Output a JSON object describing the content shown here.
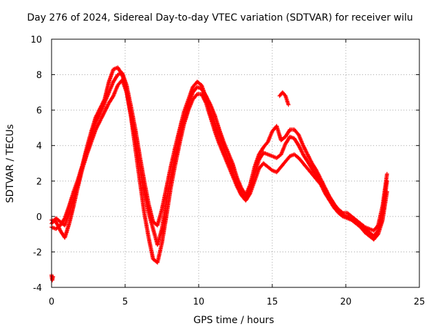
{
  "chart_data": {
    "type": "scatter",
    "title": "Day 276 of 2024, Sidereal Day-to-day VTEC variation (SDTVAR) for receiver wilu",
    "xlabel": "GPS time / hours",
    "ylabel": "SDTVAR / TECUs",
    "xlim": [
      0,
      25
    ],
    "ylim": [
      -4,
      10
    ],
    "xticks": [
      "0",
      "5",
      "10",
      "15",
      "20",
      "25"
    ],
    "yticks": [
      "-4",
      "-2",
      "0",
      "2",
      "4",
      "6",
      "8",
      "10"
    ],
    "marker": "+",
    "series_color": "#ff0000",
    "grid": "dotted",
    "series": [
      {
        "name": "track-1",
        "x": [
          0.0,
          0.3,
          0.6,
          0.9,
          1.2,
          1.5,
          1.8,
          2.1,
          2.4,
          2.7,
          3.0,
          3.3,
          3.6,
          3.9,
          4.2,
          4.5,
          4.8,
          5.1,
          5.4,
          5.7,
          6.0,
          6.3,
          6.6,
          6.9,
          7.2,
          7.5,
          7.8,
          8.1,
          8.4,
          8.7,
          9.0,
          9.3,
          9.6,
          9.9,
          10.2,
          10.5,
          10.8,
          11.1,
          11.4,
          11.7,
          12.0,
          12.3,
          12.6,
          12.9,
          13.2,
          13.5,
          13.8,
          14.1,
          14.4,
          14.7,
          15.0,
          15.3,
          15.6,
          15.9,
          16.2,
          16.5,
          16.8,
          17.1,
          17.4,
          17.7,
          18.0,
          18.3,
          18.6,
          18.9,
          19.2,
          19.5,
          19.8,
          20.1,
          20.4,
          20.7,
          21.0,
          21.3,
          21.6,
          21.9,
          22.2,
          22.5,
          22.8
        ],
        "y": [
          -0.6,
          -0.7,
          -0.5,
          -0.1,
          0.6,
          1.4,
          2.1,
          2.9,
          3.7,
          4.5,
          5.3,
          5.8,
          6.4,
          7.0,
          7.6,
          8.0,
          8.1,
          7.4,
          6.2,
          4.9,
          3.4,
          2.0,
          0.7,
          -0.3,
          -0.5,
          0.4,
          1.6,
          2.8,
          3.9,
          4.9,
          5.9,
          6.6,
          7.3,
          7.6,
          7.4,
          6.7,
          5.9,
          5.2,
          4.6,
          3.9,
          3.2,
          2.5,
          1.9,
          1.3,
          1.0,
          1.5,
          2.4,
          3.2,
          3.6,
          3.5,
          3.4,
          3.3,
          3.5,
          4.1,
          4.5,
          4.4,
          4.0,
          3.5,
          3.1,
          2.7,
          2.3,
          1.9,
          1.5,
          1.1,
          0.7,
          0.4,
          0.2,
          0.2,
          0.0,
          -0.2,
          -0.4,
          -0.6,
          -0.7,
          -0.8,
          -0.5,
          0.6,
          2.4
        ]
      },
      {
        "name": "track-2",
        "x": [
          0.0,
          0.3,
          0.6,
          0.9,
          1.2,
          1.5,
          1.8,
          2.1,
          2.4,
          2.7,
          3.0,
          3.3,
          3.6,
          3.9,
          4.2,
          4.5,
          4.8,
          5.1,
          5.4,
          5.7,
          6.0,
          6.3,
          6.6,
          6.9,
          7.2,
          7.5,
          7.8,
          8.1,
          8.4,
          8.7,
          9.0,
          9.3,
          9.6,
          9.9,
          10.2,
          10.5,
          10.8,
          11.1,
          11.4,
          11.7,
          12.0,
          12.3,
          12.6,
          12.9,
          13.2,
          13.5,
          13.8,
          14.1,
          14.4,
          14.7,
          15.0,
          15.3,
          15.6,
          15.9,
          16.2,
          16.5,
          16.8,
          17.1,
          17.4,
          17.7,
          18.0,
          18.3,
          18.6,
          18.9,
          19.2,
          19.5,
          19.8,
          20.1,
          20.4,
          20.7,
          21.0,
          21.3,
          21.6,
          21.9,
          22.2,
          22.5,
          22.8
        ],
        "y": [
          -0.2,
          -0.3,
          -0.8,
          -1.2,
          -0.4,
          0.6,
          1.7,
          2.7,
          3.5,
          4.2,
          4.9,
          5.4,
          5.9,
          6.4,
          6.8,
          7.4,
          7.7,
          7.0,
          5.6,
          3.8,
          2.0,
          0.2,
          -1.2,
          -2.4,
          -2.6,
          -1.5,
          0.0,
          1.6,
          2.9,
          4.1,
          5.2,
          6.0,
          6.6,
          6.9,
          6.9,
          6.4,
          5.6,
          4.8,
          4.1,
          3.5,
          2.9,
          2.3,
          1.7,
          1.2,
          0.9,
          1.3,
          2.0,
          2.7,
          3.0,
          2.8,
          2.6,
          2.5,
          2.8,
          3.1,
          3.4,
          3.5,
          3.3,
          3.0,
          2.7,
          2.4,
          2.1,
          1.8,
          1.3,
          0.9,
          0.5,
          0.2,
          0.0,
          -0.1,
          -0.2,
          -0.4,
          -0.6,
          -0.9,
          -1.1,
          -1.3,
          -1.0,
          -0.2,
          1.4
        ]
      },
      {
        "name": "track-3",
        "x": [
          0.0,
          0.3,
          0.6,
          0.9,
          1.2,
          1.5,
          1.8,
          2.1,
          2.4,
          2.7,
          3.0,
          3.3,
          3.6,
          3.9,
          4.2,
          4.5,
          4.8,
          5.1,
          5.4,
          5.7,
          6.0,
          6.3,
          6.6,
          6.9,
          7.2,
          7.5,
          7.8,
          8.1,
          8.4,
          8.7,
          9.0,
          9.3,
          9.6,
          9.9,
          10.2,
          10.5,
          10.8,
          11.1,
          11.4,
          11.7,
          12.0,
          12.3,
          12.6,
          12.9,
          13.2,
          13.5,
          13.8,
          14.1,
          14.4,
          14.7,
          15.0,
          15.3,
          15.6,
          15.9,
          16.2,
          16.5,
          16.8,
          17.1,
          17.4,
          17.7,
          18.0,
          18.3,
          18.6,
          18.9,
          19.2,
          19.5,
          19.8,
          20.1,
          20.4,
          20.7,
          21.0,
          21.3,
          21.6,
          21.9,
          22.2,
          22.5,
          22.8
        ],
        "y": [
          -0.4,
          -0.1,
          -0.3,
          -0.5,
          0.2,
          1.0,
          1.9,
          2.9,
          3.9,
          4.8,
          5.6,
          6.1,
          6.6,
          7.6,
          8.3,
          8.4,
          8.0,
          7.1,
          5.8,
          4.3,
          2.8,
          1.4,
          0.2,
          -0.7,
          -1.6,
          -0.7,
          0.8,
          2.2,
          3.4,
          4.5,
          5.5,
          6.3,
          7.0,
          7.3,
          7.2,
          6.8,
          6.3,
          5.7,
          4.9,
          4.2,
          3.6,
          3.0,
          2.2,
          1.6,
          1.2,
          1.8,
          2.8,
          3.5,
          3.9,
          4.2,
          4.8,
          5.1,
          4.3,
          4.5,
          4.9,
          4.9,
          4.6,
          4.0,
          3.5,
          3.0,
          2.6,
          2.1,
          1.6,
          1.1,
          0.7,
          0.3,
          0.1,
          0.0,
          -0.2,
          -0.3,
          -0.5,
          -0.7,
          -0.9,
          -1.1,
          -0.8,
          0.2,
          2.0
        ]
      },
      {
        "name": "track-4",
        "x": [
          15.5,
          15.7,
          15.9,
          16.1
        ],
        "y": [
          6.8,
          7.0,
          6.8,
          6.3
        ]
      },
      {
        "name": "track-5",
        "x": [
          0.0,
          0.05,
          0.1
        ],
        "y": [
          -3.3,
          -3.6,
          -3.4
        ]
      }
    ]
  }
}
